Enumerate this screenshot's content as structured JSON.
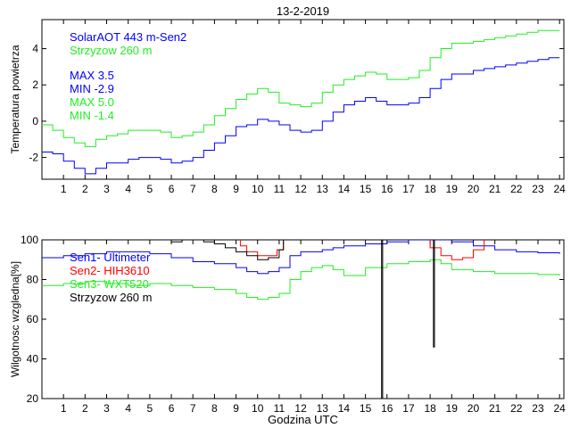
{
  "chart_data": [
    {
      "type": "line",
      "title": "13-2-2019",
      "xlabel": "",
      "ylabel": "Temperatura powietrza",
      "xlim": [
        0,
        24.2
      ],
      "ylim": [
        -3.2,
        5.6
      ],
      "xticks": [
        1,
        2,
        3,
        4,
        5,
        6,
        7,
        8,
        9,
        10,
        11,
        12,
        13,
        14,
        15,
        16,
        17,
        18,
        19,
        20,
        21,
        22,
        23,
        24
      ],
      "yticks": [
        -2,
        0,
        2,
        4
      ],
      "legend_position": "top-left",
      "legend": [
        "SolarAOT 443 m-Sen2",
        "Strzyzow 260 m"
      ],
      "stats": [
        {
          "label": "MAX 3.5",
          "color": "#0000ff"
        },
        {
          "label": "MIN -2.9",
          "color": "#0000ff"
        },
        {
          "label": "MAX 5.0",
          "color": "#22ee22"
        },
        {
          "label": "MIN -1.4",
          "color": "#22ee22"
        }
      ],
      "series": [
        {
          "name": "SolarAOT 443 m-Sen2",
          "color": "#0000ff",
          "x": [
            0,
            0.5,
            1,
            1.5,
            2,
            2.5,
            3,
            3.5,
            4,
            4.5,
            5,
            5.5,
            6,
            6.5,
            7,
            7.5,
            8,
            8.5,
            9,
            9.5,
            10,
            10.5,
            11,
            11.5,
            12,
            12.5,
            13,
            13.5,
            14,
            14.5,
            15,
            15.5,
            16,
            16.5,
            17,
            17.5,
            18,
            18.5,
            19,
            19.5,
            20,
            20.5,
            21,
            21.5,
            22,
            22.5,
            23,
            23.5,
            24
          ],
          "y": [
            -1.7,
            -1.8,
            -2.2,
            -2.6,
            -2.9,
            -2.6,
            -2.3,
            -2.3,
            -2.1,
            -2.0,
            -2.0,
            -2.1,
            -2.3,
            -2.2,
            -2.0,
            -1.6,
            -1.2,
            -0.8,
            -0.3,
            -0.2,
            0.1,
            0.0,
            -0.2,
            -0.5,
            -0.6,
            -0.5,
            0.0,
            0.5,
            0.9,
            1.1,
            1.3,
            1.1,
            0.9,
            0.9,
            1.0,
            1.3,
            1.8,
            2.3,
            2.6,
            2.6,
            2.8,
            2.9,
            3.0,
            3.1,
            3.2,
            3.3,
            3.4,
            3.5,
            3.5
          ]
        },
        {
          "name": "Strzyzow 260 m",
          "color": "#22ee22",
          "x": [
            0,
            0.5,
            1,
            1.5,
            2,
            2.5,
            3,
            3.5,
            4,
            4.5,
            5,
            5.5,
            6,
            6.5,
            7,
            7.5,
            8,
            8.5,
            9,
            9.5,
            10,
            10.5,
            11,
            11.5,
            12,
            12.5,
            13,
            13.5,
            14,
            14.5,
            15,
            15.5,
            16,
            16.5,
            17,
            17.5,
            18,
            18.5,
            19,
            19.5,
            20,
            20.5,
            21,
            21.5,
            22,
            22.5,
            23,
            23.5,
            24
          ],
          "y": [
            -0.2,
            -0.5,
            -0.9,
            -1.2,
            -1.4,
            -1.0,
            -0.8,
            -0.7,
            -0.5,
            -0.5,
            -0.5,
            -0.6,
            -0.9,
            -0.8,
            -0.6,
            -0.2,
            0.3,
            0.7,
            1.2,
            1.5,
            1.8,
            1.6,
            1.0,
            0.9,
            0.8,
            1.0,
            1.6,
            2.0,
            2.3,
            2.5,
            2.7,
            2.6,
            2.3,
            2.3,
            2.4,
            2.8,
            3.5,
            4.0,
            4.3,
            4.3,
            4.4,
            4.5,
            4.6,
            4.7,
            4.8,
            4.9,
            5.0,
            5.0,
            5.0
          ]
        }
      ]
    },
    {
      "type": "line",
      "title": "",
      "xlabel": "Godzina UTC",
      "ylabel": "Wilgotnosc wzgledna[%]",
      "xlim": [
        0,
        24.2
      ],
      "ylim": [
        20,
        100
      ],
      "xticks": [
        1,
        2,
        3,
        4,
        5,
        6,
        7,
        8,
        9,
        10,
        11,
        12,
        13,
        14,
        15,
        16,
        17,
        18,
        19,
        20,
        21,
        22,
        23,
        24
      ],
      "yticks": [
        20,
        40,
        60,
        80,
        100
      ],
      "legend_position": "top-left",
      "legend": [
        "Sen1- Ultimeter",
        "Sen2- HIH3610",
        "Sen3- WXT520",
        "Strzyzow 260 m"
      ],
      "series": [
        {
          "name": "Sen1- Ultimeter",
          "color": "#0000ff",
          "x": [
            0,
            1,
            2,
            3,
            4,
            5,
            6,
            7,
            8,
            9,
            9.5,
            10,
            10.5,
            11,
            11.5,
            12,
            12.5,
            13,
            13.5,
            14,
            15,
            16,
            17,
            18,
            19,
            20,
            21,
            22,
            23,
            24
          ],
          "y": [
            91,
            92,
            93,
            94,
            94,
            93,
            91,
            89,
            88,
            86,
            84,
            83,
            84,
            86,
            92,
            94,
            94,
            95,
            96,
            97,
            98,
            99,
            100,
            100,
            99,
            97,
            95,
            94,
            93.5,
            93
          ]
        },
        {
          "name": "Sen2- HIH3610",
          "color": "#ff0000",
          "x": [
            8.9,
            9.2,
            9.5,
            10,
            10.5,
            10.9,
            11.2,
            17.5,
            18,
            18.5,
            19,
            19.5,
            20,
            20.5
          ],
          "y": [
            101,
            97,
            94,
            92,
            92,
            95,
            101,
            101,
            96,
            92,
            90,
            91,
            95,
            101
          ]
        },
        {
          "name": "Sen3- WXT520",
          "color": "#22ee22",
          "x": [
            0,
            1,
            2,
            3,
            4,
            5,
            6,
            7,
            8,
            9,
            9.5,
            10,
            10.5,
            11,
            11.5,
            12,
            12.5,
            13,
            13.5,
            14,
            15,
            16,
            17,
            18,
            18.5,
            19,
            20,
            21,
            22,
            23,
            24
          ],
          "y": [
            77,
            78,
            79,
            78,
            77,
            78,
            77,
            76,
            75,
            73,
            71,
            70,
            71,
            73,
            80,
            84,
            86,
            87,
            85,
            82,
            86,
            88,
            89,
            90,
            88,
            85,
            84,
            83,
            83,
            82.5,
            82
          ]
        },
        {
          "name": "Strzyzow 260 m",
          "color": "#000000",
          "x": [
            0.4,
            1,
            1.5,
            2,
            2.5,
            3,
            3.5,
            4,
            4.5,
            5,
            5.5,
            6,
            6.5,
            7,
            7.5,
            8,
            8.5,
            9,
            9.5,
            10,
            10.5,
            11,
            11.2,
            15.7,
            15.75,
            15.8,
            18.1,
            18.15,
            18.2
          ],
          "y": [
            101,
            100,
            101,
            100,
            101,
            100,
            101,
            100,
            101,
            100,
            101,
            99,
            100,
            100,
            99,
            98,
            96,
            94,
            92,
            90,
            91,
            95,
            101,
            101,
            20,
            101,
            101,
            46,
            101
          ]
        }
      ]
    }
  ]
}
